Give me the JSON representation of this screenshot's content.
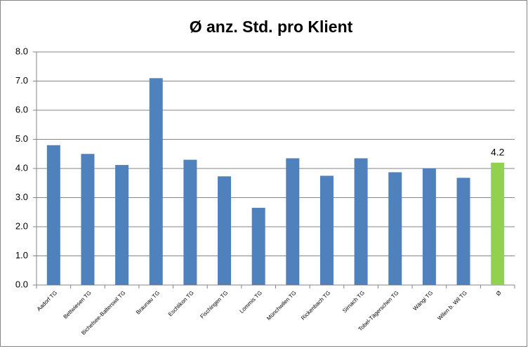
{
  "chart_data": {
    "type": "bar",
    "title": "Ø anz. Std. pro Klient",
    "categories": [
      "Aadorf TG",
      "Bettwiesen TG",
      "Bichelsee-Balterswil TG",
      "Braunau TG",
      "Eschlikon TG",
      "Fischingen TG",
      "Lommis TG",
      "Münchwilen TG",
      "Rickenbach TG",
      "Sirnach TG",
      "Tobel-Tägerschen TG",
      "Wängi TG",
      "Wilen b. Wil TG",
      "Ø"
    ],
    "values": [
      4.8,
      4.5,
      4.12,
      7.1,
      4.3,
      3.73,
      2.65,
      4.35,
      3.75,
      4.35,
      3.87,
      4.0,
      3.68,
      4.2
    ],
    "value_labels": [
      null,
      null,
      null,
      null,
      null,
      null,
      null,
      null,
      null,
      null,
      null,
      null,
      null,
      "4.2"
    ],
    "colors": [
      "#4f81bd",
      "#4f81bd",
      "#4f81bd",
      "#4f81bd",
      "#4f81bd",
      "#4f81bd",
      "#4f81bd",
      "#4f81bd",
      "#4f81bd",
      "#4f81bd",
      "#4f81bd",
      "#4f81bd",
      "#4f81bd",
      "#92d050"
    ],
    "ylim": [
      0,
      8
    ],
    "yticks": [
      {
        "value": 0,
        "label": "0.0"
      },
      {
        "value": 1,
        "label": "1.0"
      },
      {
        "value": 2,
        "label": "2.0"
      },
      {
        "value": 3,
        "label": "3.0"
      },
      {
        "value": 4,
        "label": "4.0"
      },
      {
        "value": 5,
        "label": "5.0"
      },
      {
        "value": 6,
        "label": "6.0"
      },
      {
        "value": 7,
        "label": "7.0"
      },
      {
        "value": 8,
        "label": "8.0"
      }
    ],
    "grid": true
  }
}
